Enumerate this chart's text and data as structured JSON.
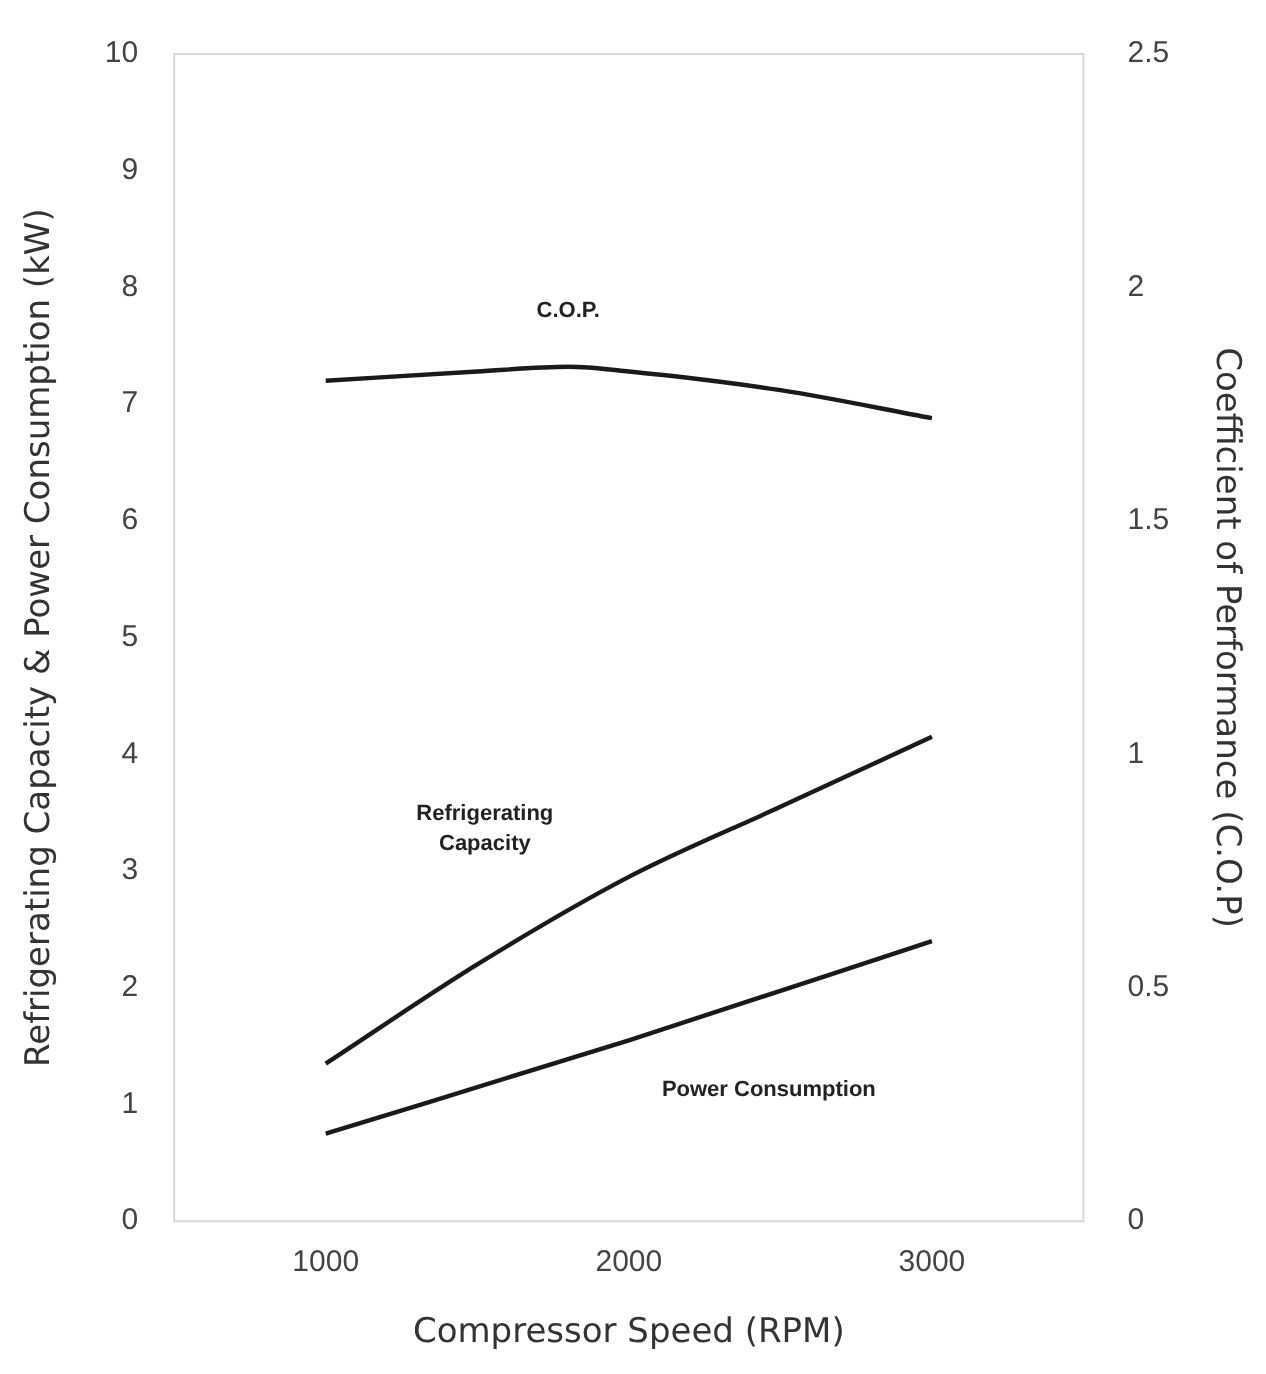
{
  "chart_data": {
    "type": "line",
    "xlabel": "Compressor Speed (RPM)",
    "ylabel": "Refrigerating Capacity & Power Consumption (kW)",
    "y2label": "Coefficient of Performance (C.O.P)",
    "xlim": [
      500,
      3500
    ],
    "xticks": [
      1000,
      2000,
      3000
    ],
    "ylim": [
      0,
      10
    ],
    "yticks": [
      0,
      1,
      2,
      3,
      4,
      5,
      6,
      7,
      8,
      9,
      10
    ],
    "y2lim": [
      0,
      2.5
    ],
    "y2ticks": [
      0,
      0.5,
      1,
      1.5,
      2,
      2.5
    ],
    "grid": false,
    "legend": false,
    "marker": "none",
    "line_style": "solid",
    "series": [
      {
        "name": "C.O.P.",
        "color": "#1a1a1a",
        "axis": "y2",
        "x": [
          1000,
          1500,
          1800,
          2000,
          2500,
          3000
        ],
        "values": [
          1.8,
          1.82,
          1.83,
          1.82,
          1.78,
          1.72
        ]
      },
      {
        "name": "Refrigerating\nCapacity",
        "color": "#1a1a1a",
        "x": [
          1000,
          1500,
          2000,
          2500,
          3000
        ],
        "values": [
          1.35,
          2.2,
          2.95,
          3.55,
          4.15
        ]
      },
      {
        "name": "Power Consumption",
        "color": "#1a1a1a",
        "x": [
          1000,
          2000,
          3000
        ],
        "values": [
          0.75,
          1.55,
          2.4
        ]
      }
    ]
  }
}
